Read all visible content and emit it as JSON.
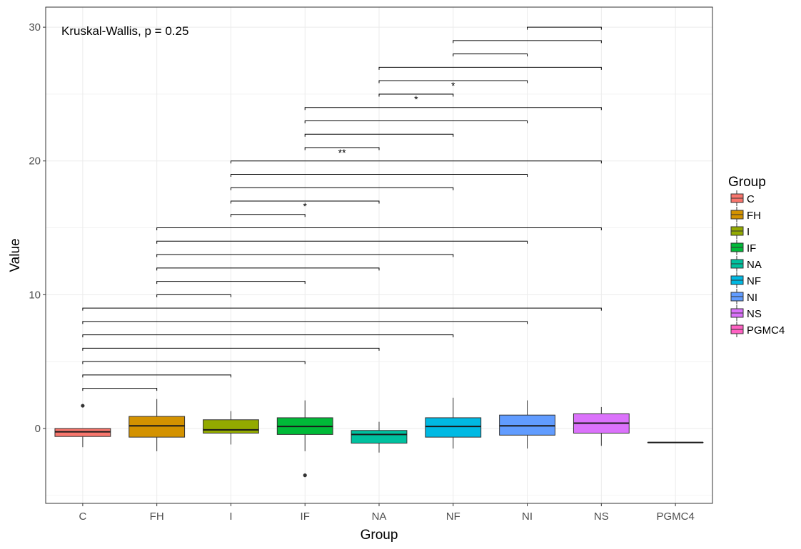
{
  "chart_data": {
    "type": "boxplot",
    "xlabel": "Group",
    "ylabel": "Value",
    "ylim": [
      -5.6,
      31.5
    ],
    "y_ticks": [
      0,
      10,
      20,
      30
    ],
    "grid": true,
    "legend_position": "right",
    "legend_title": "Group",
    "annotation": "Kruskal-Wallis, p = 0.25",
    "groups": [
      {
        "name": "C",
        "color": "#F8766D",
        "lower_whisker": -1.4,
        "q1": -0.6,
        "median": -0.25,
        "q3": 0.0,
        "upper_whisker": 0.0,
        "outliers": [
          1.7
        ]
      },
      {
        "name": "FH",
        "color": "#D39200",
        "lower_whisker": -1.7,
        "q1": -0.65,
        "median": 0.2,
        "q3": 0.9,
        "upper_whisker": 2.2,
        "outliers": []
      },
      {
        "name": "I",
        "color": "#93AA00",
        "lower_whisker": -1.2,
        "q1": -0.35,
        "median": -0.1,
        "q3": 0.65,
        "upper_whisker": 1.3,
        "outliers": []
      },
      {
        "name": "IF",
        "color": "#00BA38",
        "lower_whisker": -1.7,
        "q1": -0.45,
        "median": 0.15,
        "q3": 0.8,
        "upper_whisker": 2.1,
        "outliers": [
          -3.5
        ]
      },
      {
        "name": "NA",
        "color": "#00C19F",
        "lower_whisker": -1.8,
        "q1": -1.1,
        "median": -0.45,
        "q3": -0.15,
        "upper_whisker": 0.5,
        "outliers": []
      },
      {
        "name": "NF",
        "color": "#00B9E3",
        "lower_whisker": -1.5,
        "q1": -0.65,
        "median": 0.15,
        "q3": 0.8,
        "upper_whisker": 2.3,
        "outliers": []
      },
      {
        "name": "NI",
        "color": "#619CFF",
        "lower_whisker": -1.5,
        "q1": -0.5,
        "median": 0.2,
        "q3": 1.0,
        "upper_whisker": 2.1,
        "outliers": []
      },
      {
        "name": "NS",
        "color": "#DB72FB",
        "lower_whisker": -1.3,
        "q1": -0.35,
        "median": 0.4,
        "q3": 1.1,
        "upper_whisker": 1.6,
        "outliers": []
      },
      {
        "name": "PGMC4",
        "color": "#FF61C3",
        "lower_whisker": -1.05,
        "q1": -1.05,
        "median": -1.05,
        "q3": -1.05,
        "upper_whisker": -1.05,
        "outliers": []
      }
    ],
    "comparisons": [
      {
        "from": "C",
        "to": "FH",
        "y": 3,
        "label": ""
      },
      {
        "from": "C",
        "to": "I",
        "y": 4,
        "label": ""
      },
      {
        "from": "C",
        "to": "IF",
        "y": 5,
        "label": ""
      },
      {
        "from": "C",
        "to": "NA",
        "y": 6,
        "label": ""
      },
      {
        "from": "C",
        "to": "NF",
        "y": 7,
        "label": ""
      },
      {
        "from": "C",
        "to": "NI",
        "y": 8,
        "label": ""
      },
      {
        "from": "C",
        "to": "NS",
        "y": 9,
        "label": ""
      },
      {
        "from": "FH",
        "to": "I",
        "y": 10,
        "label": ""
      },
      {
        "from": "FH",
        "to": "IF",
        "y": 11,
        "label": ""
      },
      {
        "from": "FH",
        "to": "NA",
        "y": 12,
        "label": ""
      },
      {
        "from": "FH",
        "to": "NF",
        "y": 13,
        "label": ""
      },
      {
        "from": "FH",
        "to": "NI",
        "y": 14,
        "label": ""
      },
      {
        "from": "FH",
        "to": "NS",
        "y": 15,
        "label": ""
      },
      {
        "from": "I",
        "to": "IF",
        "y": 16,
        "label": ""
      },
      {
        "from": "I",
        "to": "NA",
        "y": 17,
        "label": "*"
      },
      {
        "from": "I",
        "to": "NF",
        "y": 18,
        "label": ""
      },
      {
        "from": "I",
        "to": "NI",
        "y": 19,
        "label": ""
      },
      {
        "from": "I",
        "to": "NS",
        "y": 20,
        "label": ""
      },
      {
        "from": "IF",
        "to": "NA",
        "y": 21,
        "label": "**"
      },
      {
        "from": "IF",
        "to": "NF",
        "y": 22,
        "label": ""
      },
      {
        "from": "IF",
        "to": "NI",
        "y": 23,
        "label": ""
      },
      {
        "from": "IF",
        "to": "NS",
        "y": 24,
        "label": ""
      },
      {
        "from": "NA",
        "to": "NF",
        "y": 25,
        "label": "*"
      },
      {
        "from": "NA",
        "to": "NI",
        "y": 26,
        "label": "*"
      },
      {
        "from": "NA",
        "to": "NS",
        "y": 27,
        "label": ""
      },
      {
        "from": "NF",
        "to": "NI",
        "y": 28,
        "label": ""
      },
      {
        "from": "NF",
        "to": "NS",
        "y": 29,
        "label": ""
      },
      {
        "from": "NI",
        "to": "NS",
        "y": 30,
        "label": ""
      }
    ]
  }
}
